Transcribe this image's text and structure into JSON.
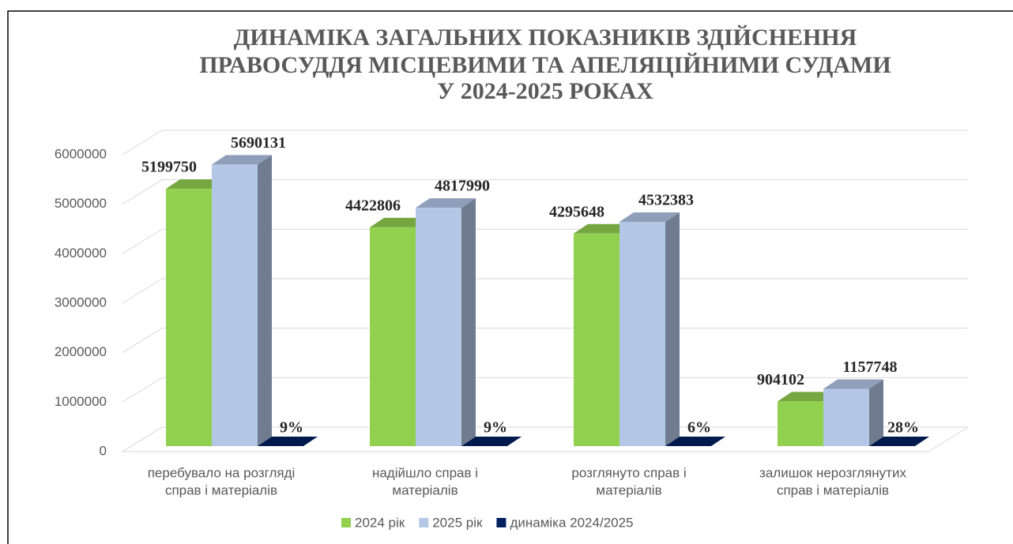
{
  "chart_data": {
    "type": "bar3d",
    "title": [
      "ДИНАМІКА ЗАГАЛЬНИХ ПОКАЗНИКІВ ЗДІЙСНЕННЯ",
      "ПРАВОСУДДЯ МІСЦЕВИМИ ТА АПЕЛЯЦІЙНИМИ СУДАМИ",
      "У 2024-2025 РОКАХ"
    ],
    "categories": [
      [
        "перебувало на розгляді",
        "справ і матеріалів"
      ],
      [
        "надійшло справ і",
        "матеріалів"
      ],
      [
        "розглянуто справ і",
        "матеріалів"
      ],
      [
        "залишок нерозглянутих",
        "справ і матеріалів"
      ]
    ],
    "series": [
      {
        "name": "2024 рік",
        "color": "#92d050",
        "values": [
          5199750,
          4422806,
          4295648,
          904102
        ]
      },
      {
        "name": "2025 рік",
        "color": "#b4c7e7",
        "values": [
          5690131,
          4817990,
          4532383,
          1157748
        ]
      },
      {
        "name": "динаміка 2024/2025",
        "color": "#002060",
        "values": [
          9,
          9,
          6,
          28
        ],
        "value_labels": [
          "9%",
          "9%",
          "6%",
          "28%"
        ]
      }
    ],
    "ylim": [
      0,
      6000000
    ],
    "yticks": [
      0,
      1000000,
      2000000,
      3000000,
      4000000,
      5000000,
      6000000
    ],
    "grid": true,
    "legend": "bottom"
  }
}
